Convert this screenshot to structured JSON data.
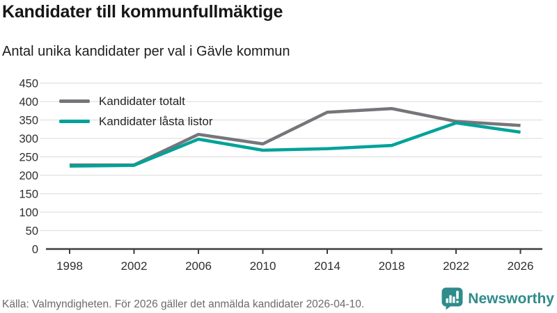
{
  "header": {
    "title": "Kandidater till kommunfullmäktige",
    "subtitle": "Antal unika kandidater per val i Gävle kommun"
  },
  "chart_data": {
    "type": "line",
    "x": [
      1998,
      2002,
      2006,
      2010,
      2014,
      2018,
      2022,
      2026
    ],
    "series": [
      {
        "name": "Kandidater totalt",
        "color": "#75757a",
        "values": [
          228,
          228,
          311,
          285,
          371,
          381,
          346,
          335
        ]
      },
      {
        "name": "Kandidater låsta listor",
        "color": "#00a29a",
        "values": [
          225,
          227,
          298,
          268,
          272,
          281,
          342,
          317
        ]
      }
    ],
    "title": "Kandidater till kommunfullmäktige",
    "xlabel": "",
    "ylabel": "",
    "ylim": [
      0,
      450
    ],
    "ytick_step": 50,
    "grid": true,
    "legend_position": "top-left",
    "grid_color": "#e0e0e0",
    "axis_color": "#3c3c3c",
    "tick_label_color": "#2e2e2e"
  },
  "footer": {
    "source": "Källa: Valmyndigheten. För 2026 gäller det anmälda kandidater 2026-04-10.",
    "brand": "Newsworthy",
    "brand_color": "#2e8c8a",
    "logo_icon": "bar-chart-speech-bubble-icon"
  }
}
